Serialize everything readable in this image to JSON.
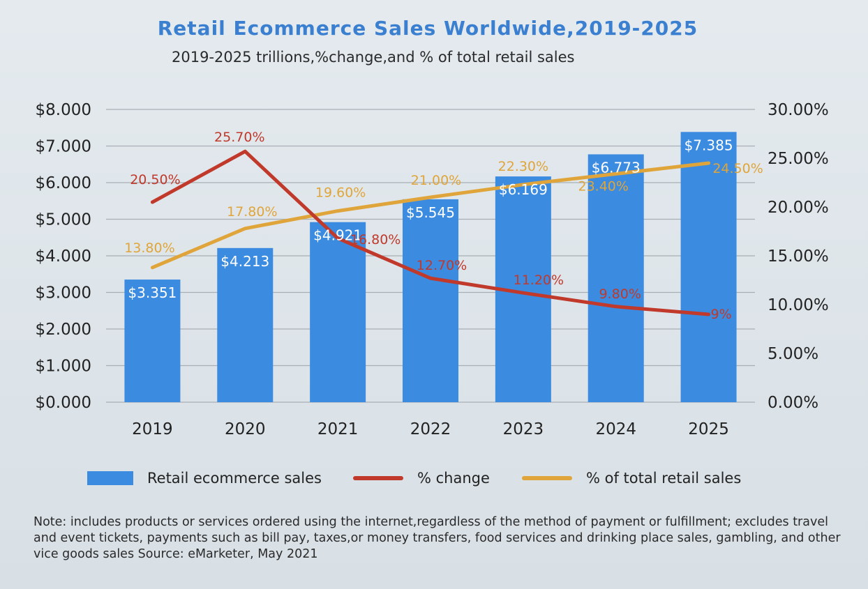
{
  "chart_data": {
    "type": "bar",
    "title": "Retail Ecommerce Sales Worldwide,2019-2025",
    "subtitle": "2019-2025 trillions,%change,and % of total retail sales",
    "categories": [
      "2019",
      "2020",
      "2021",
      "2022",
      "2023",
      "2024",
      "2025"
    ],
    "series": [
      {
        "name": "Retail ecommerce sales",
        "type": "bar",
        "axis": "left",
        "color": "#3b8be0",
        "values": [
          3.351,
          4.213,
          4.921,
          5.545,
          6.169,
          6.773,
          7.385
        ],
        "labels": [
          "$3.351",
          "$4.213",
          "$4.921",
          "$5.545",
          "$6.169",
          "$6.773",
          "$7.385"
        ]
      },
      {
        "name": "% change",
        "type": "line",
        "axis": "right",
        "color": "#c0392b",
        "values": [
          20.5,
          25.7,
          16.8,
          12.7,
          11.2,
          9.8,
          9.0
        ],
        "labels": [
          "20.50%",
          "25.70%",
          "16.80%",
          "12.70%",
          "11.20%",
          "9.80%",
          "9%"
        ]
      },
      {
        "name": "% of total retail sales",
        "type": "line",
        "axis": "right",
        "color": "#e0a53a",
        "values": [
          13.8,
          17.8,
          19.6,
          21.0,
          22.3,
          23.4,
          24.5
        ],
        "labels": [
          "13.80%",
          "17.80%",
          "19.60%",
          "21.00%",
          "22.30%",
          "23.40%",
          "24.50%"
        ]
      }
    ],
    "yaxis_left": {
      "range": [
        0,
        8
      ],
      "ticks": [
        "$0.000",
        "$1.000",
        "$2.000",
        "$3.000",
        "$4.000",
        "$5.000",
        "$6.000",
        "$7.000",
        "$8.000"
      ]
    },
    "yaxis_right": {
      "range": [
        0,
        30
      ],
      "ticks": [
        "0.00%",
        "5.00%",
        "10.00%",
        "15.00%",
        "20.00%",
        "25.00%",
        "30.00%"
      ]
    },
    "grid": true,
    "legend": "bottom"
  },
  "legend": {
    "bar_label": "Retail ecommerce sales",
    "change_label": "% change",
    "share_label": "% of total retail sales"
  },
  "note": "Note: includes products or services ordered using the internet,regardless of the method of payment or fulfillment; excludes travel and event tickets, payments such as bill pay, taxes,or money transfers, food services and drinking place sales, gambling, and other vice goods sales Source: eMarketer, May 2021"
}
